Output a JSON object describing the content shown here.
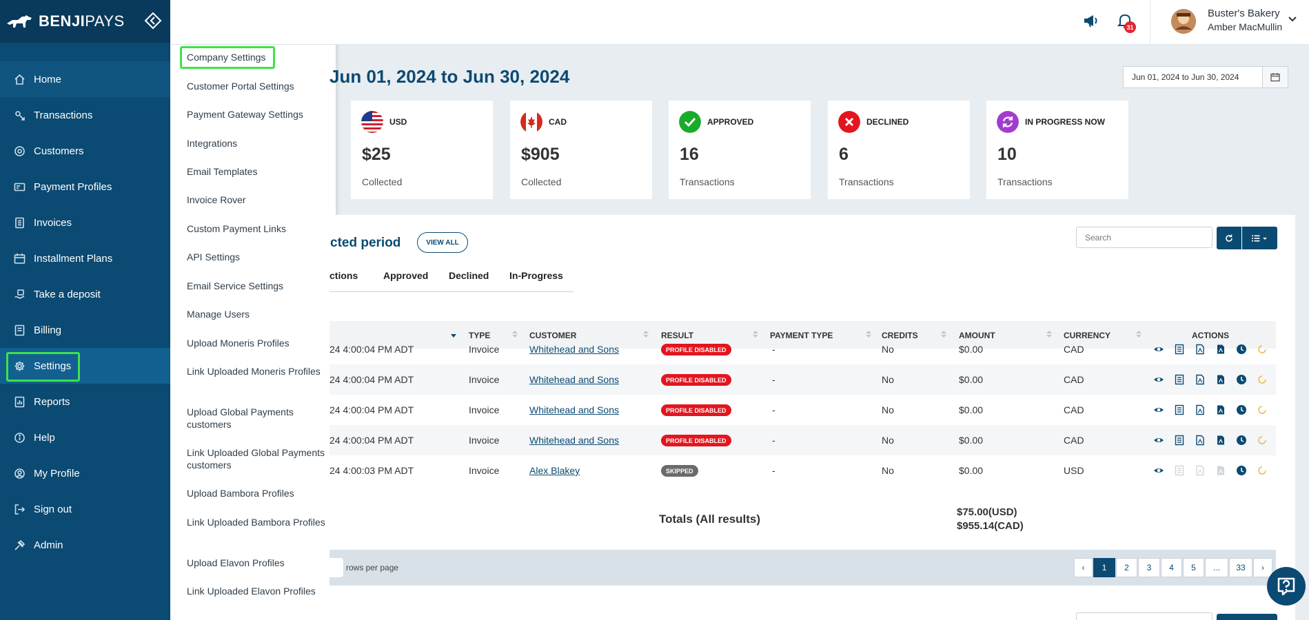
{
  "brand": {
    "name_bold": "BENJI",
    "name_light": "PAYS"
  },
  "sidebar": {
    "items": [
      {
        "label": "Home",
        "icon": "home-icon"
      },
      {
        "label": "Transactions",
        "icon": "transactions-icon"
      },
      {
        "label": "Customers",
        "icon": "customers-icon"
      },
      {
        "label": "Payment Profiles",
        "icon": "payment-profiles-icon"
      },
      {
        "label": "Invoices",
        "icon": "invoices-icon"
      },
      {
        "label": "Installment Plans",
        "icon": "calendar-icon"
      },
      {
        "label": "Take a deposit",
        "icon": "deposit-icon"
      },
      {
        "label": "Billing",
        "icon": "billing-icon"
      },
      {
        "label": "Settings",
        "icon": "gear-icon"
      },
      {
        "label": "Reports",
        "icon": "reports-icon"
      },
      {
        "label": "Help",
        "icon": "help-icon"
      },
      {
        "label": "My Profile",
        "icon": "profile-icon"
      },
      {
        "label": "Sign out",
        "icon": "sign-out-icon"
      },
      {
        "label": "Admin",
        "icon": "admin-icon"
      }
    ]
  },
  "settings_menu": {
    "items": [
      "Company Settings",
      "Customer Portal Settings",
      "Payment Gateway Settings",
      "Integrations",
      "Email Templates",
      "Invoice Rover",
      "Custom Payment Links",
      "API Settings",
      "Email Service Settings",
      "Manage Users",
      "Upload Moneris Profiles",
      "Link Uploaded Moneris Profiles",
      "Upload Global Payments customers",
      "Link Uploaded Global Payments customers",
      "Upload Bambora Profiles",
      "Link Uploaded Bambora Profiles",
      "Upload Elavon Profiles",
      "Link Uploaded Elavon Profiles"
    ]
  },
  "header": {
    "notification_count": "31",
    "company": "Buster's Bakery",
    "user": "Amber MacMullin"
  },
  "main": {
    "period_title": "Jun 01, 2024 to Jun 30, 2024",
    "date_range": "Jun 01, 2024 to Jun 30, 2024",
    "cards": [
      {
        "label": "USD",
        "value": "$25",
        "sub": "Collected"
      },
      {
        "label": "CAD",
        "value": "$905",
        "sub": "Collected"
      },
      {
        "label": "APPROVED",
        "value": "16",
        "sub": "Transactions"
      },
      {
        "label": "DECLINED",
        "value": "6",
        "sub": "Transactions"
      },
      {
        "label": "IN PROGRESS NOW",
        "value": "10",
        "sub": "Transactions"
      }
    ],
    "section_title": "cted period",
    "view_all": "VIEW ALL",
    "search_placeholder": "Search",
    "tabs": [
      "ctions",
      "Approved",
      "Declined",
      "In-Progress"
    ],
    "columns": [
      "TYPE",
      "CUSTOMER",
      "RESULT",
      "PAYMENT TYPE",
      "CREDITS",
      "AMOUNT",
      "CURRENCY",
      "ACTIONS"
    ],
    "rows": [
      {
        "date": "24 4:00:04 PM ADT",
        "type": "Invoice",
        "customer": "Whitehead and Sons",
        "result": "PROFILE DISABLED",
        "payment_type": "-",
        "credits": "No",
        "amount": "$0.00",
        "currency": "CAD"
      },
      {
        "date": "24 4:00:04 PM ADT",
        "type": "Invoice",
        "customer": "Whitehead and Sons",
        "result": "PROFILE DISABLED",
        "payment_type": "-",
        "credits": "No",
        "amount": "$0.00",
        "currency": "CAD"
      },
      {
        "date": "24 4:00:04 PM ADT",
        "type": "Invoice",
        "customer": "Whitehead and Sons",
        "result": "PROFILE DISABLED",
        "payment_type": "-",
        "credits": "No",
        "amount": "$0.00",
        "currency": "CAD"
      },
      {
        "date": "24 4:00:04 PM ADT",
        "type": "Invoice",
        "customer": "Whitehead and Sons",
        "result": "PROFILE DISABLED",
        "payment_type": "-",
        "credits": "No",
        "amount": "$0.00",
        "currency": "CAD"
      },
      {
        "date": "24 4:00:03 PM ADT",
        "type": "Invoice",
        "customer": "Alex Blakey",
        "result": "SKIPPED",
        "payment_type": "-",
        "credits": "No",
        "amount": "$0.00",
        "currency": "USD"
      }
    ],
    "totals_label": "Totals (All results)",
    "totals_usd": "$75.00(USD)",
    "totals_cad": "$955.14(CAD)",
    "rows_per_page": "rows per page",
    "pagination": [
      "‹",
      "1",
      "2",
      "3",
      "4",
      "5",
      "...",
      "33",
      "›"
    ],
    "active_page": "1"
  },
  "colors": {
    "sidebar": "#0b4a72",
    "accent": "#0b4a72",
    "highlight": "#3ee24a",
    "approved": "#1aab2a",
    "declined": "#e3151e",
    "in_progress": "#a23ccf"
  }
}
